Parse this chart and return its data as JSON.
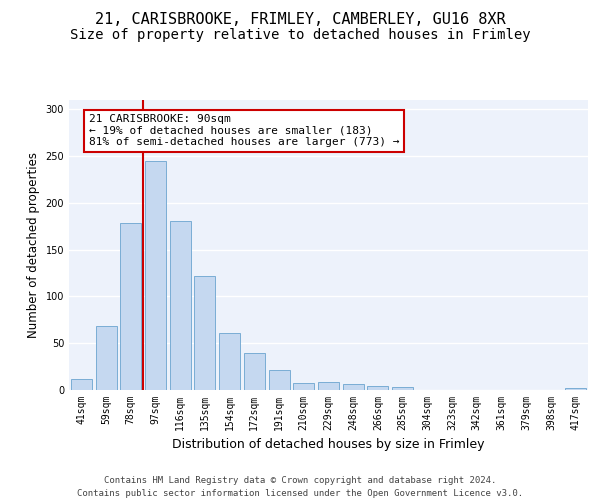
{
  "title1": "21, CARISBROOKE, FRIMLEY, CAMBERLEY, GU16 8XR",
  "title2": "Size of property relative to detached houses in Frimley",
  "xlabel": "Distribution of detached houses by size in Frimley",
  "ylabel": "Number of detached properties",
  "categories": [
    "41sqm",
    "59sqm",
    "78sqm",
    "97sqm",
    "116sqm",
    "135sqm",
    "154sqm",
    "172sqm",
    "191sqm",
    "210sqm",
    "229sqm",
    "248sqm",
    "266sqm",
    "285sqm",
    "304sqm",
    "323sqm",
    "342sqm",
    "361sqm",
    "379sqm",
    "398sqm",
    "417sqm"
  ],
  "values": [
    12,
    68,
    179,
    245,
    181,
    122,
    61,
    40,
    21,
    7,
    9,
    6,
    4,
    3,
    0,
    0,
    0,
    0,
    0,
    0,
    2
  ],
  "bar_color": "#c5d8f0",
  "bar_edge_color": "#7aadd4",
  "vline_color": "#cc0000",
  "annotation_text": "21 CARISBROOKE: 90sqm\n← 19% of detached houses are smaller (183)\n81% of semi-detached houses are larger (773) →",
  "annotation_box_color": "white",
  "annotation_box_edge_color": "#cc0000",
  "ylim": [
    0,
    310
  ],
  "yticks": [
    0,
    50,
    100,
    150,
    200,
    250,
    300
  ],
  "footnote1": "Contains HM Land Registry data © Crown copyright and database right 2024.",
  "footnote2": "Contains public sector information licensed under the Open Government Licence v3.0.",
  "bg_color": "#edf2fb",
  "title1_fontsize": 11,
  "title2_fontsize": 10,
  "xlabel_fontsize": 9,
  "ylabel_fontsize": 8.5,
  "tick_fontsize": 7,
  "annot_fontsize": 8,
  "footnote_fontsize": 6.5
}
